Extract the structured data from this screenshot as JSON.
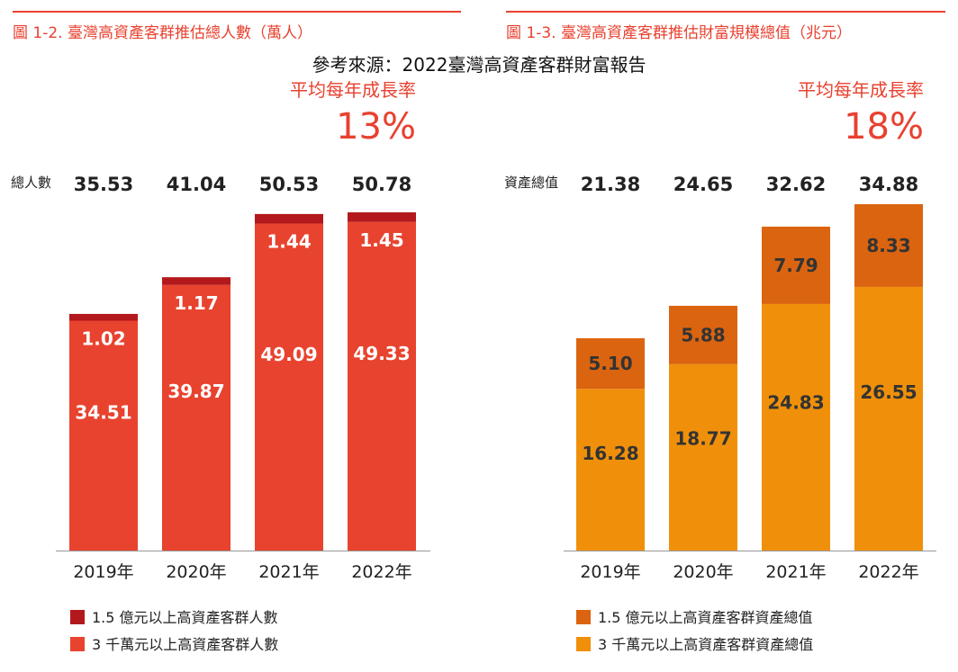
{
  "source_note": "參考來源：2022臺灣高資產客群財富報告",
  "chart_data": [
    {
      "type": "bar",
      "stacked": true,
      "title": "圖 1-2. 臺灣高資產客群推估總人數（萬人）",
      "growth_label": "平均每年成長率",
      "growth_value": "13%",
      "total_label": "總人數",
      "categories": [
        "2019年",
        "2020年",
        "2021年",
        "2022年"
      ],
      "totals": [
        "35.53",
        "41.04",
        "50.53",
        "50.78"
      ],
      "ylim": [
        0,
        52
      ],
      "series": [
        {
          "name": "3 千萬元以上高資產客群人數",
          "values": [
            34.51,
            39.87,
            49.09,
            49.33
          ],
          "color": "#e8432f"
        },
        {
          "name": "1.5 億元以上高資產客群人數",
          "values": [
            1.02,
            1.17,
            1.44,
            1.45
          ],
          "color": "#b3191c"
        }
      ],
      "value_labels": [
        [
          "34.51",
          "39.87",
          "49.09",
          "49.33"
        ],
        [
          "1.02",
          "1.17",
          "1.44",
          "1.45"
        ]
      ],
      "label_color": "#ffffff",
      "small_label_offset": true
    },
    {
      "type": "bar",
      "stacked": true,
      "title": "圖 1-3. 臺灣高資產客群推估財富規模總值（兆元）",
      "growth_label": "平均每年成長率",
      "growth_value": "18%",
      "total_label": "資產總值",
      "categories": [
        "2019年",
        "2020年",
        "2021年",
        "2022年"
      ],
      "totals": [
        "21.38",
        "24.65",
        "32.62",
        "34.88"
      ],
      "ylim": [
        0,
        34.88
      ],
      "series": [
        {
          "name": "3 千萬元以上高資產客群資產總值",
          "values": [
            16.28,
            18.77,
            24.83,
            26.55
          ],
          "color": "#f0900a"
        },
        {
          "name": "1.5 億元以上高資產客群資產總值",
          "values": [
            5.1,
            5.88,
            7.79,
            8.33
          ],
          "color": "#db6410"
        }
      ],
      "value_labels": [
        [
          "16.28",
          "18.77",
          "24.83",
          "26.55"
        ],
        [
          "5.10",
          "5.88",
          "7.79",
          "8.33"
        ]
      ],
      "label_color": "#333333",
      "small_label_offset": false
    }
  ]
}
